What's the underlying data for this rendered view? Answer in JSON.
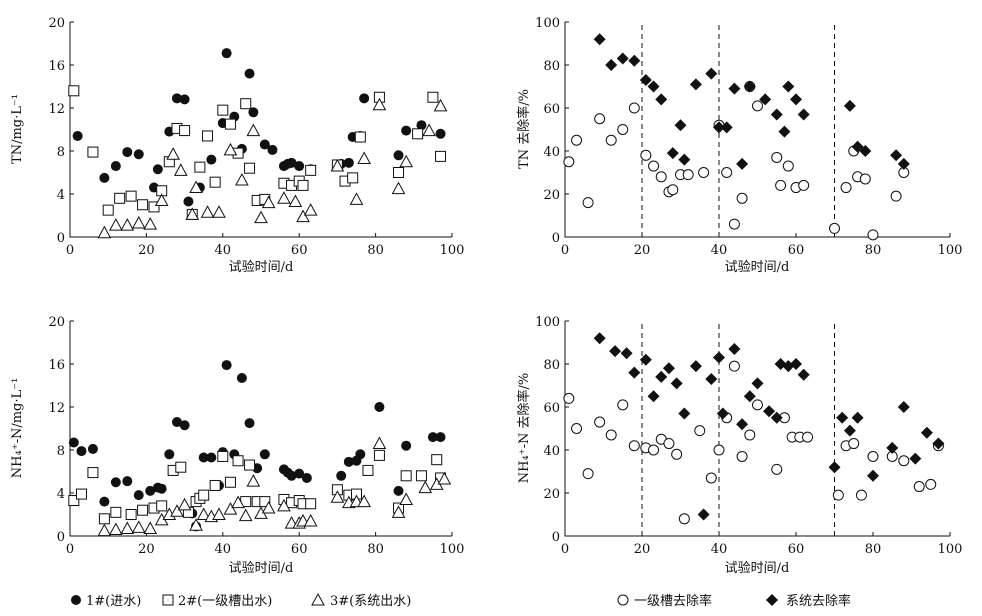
{
  "chart_data": [
    {
      "type": "scatter",
      "xlabel": "试验时间/d",
      "ylabel": "TN/mg·L⁻¹",
      "xlim": [
        0,
        100
      ],
      "ylim": [
        0,
        20
      ],
      "xticks": [
        0,
        20,
        40,
        60,
        80,
        100
      ],
      "yticks": [
        0,
        4,
        8,
        12,
        16,
        20
      ],
      "series": [
        {
          "name": "1#(进水)",
          "marker": "filled-circle",
          "color": "#111111",
          "x": [
            2,
            9,
            12,
            15,
            18,
            22,
            23,
            26,
            28,
            30,
            31,
            34,
            37,
            40,
            41,
            43,
            45,
            47,
            48,
            51,
            53,
            56,
            57,
            58,
            60,
            63,
            71,
            73,
            74,
            76,
            77,
            86,
            88,
            92,
            97
          ],
          "y": [
            9.4,
            5.5,
            6.6,
            7.9,
            7.7,
            4.6,
            6.3,
            9.8,
            12.9,
            12.8,
            3.3,
            4.6,
            7.2,
            10.6,
            17.1,
            11.2,
            8.2,
            15.2,
            11.6,
            8.6,
            8.1,
            6.6,
            6.8,
            6.9,
            6.6,
            6.3,
            6.8,
            6.9,
            9.3,
            9.4,
            12.9,
            7.6,
            9.9,
            10.4,
            9.6
          ]
        },
        {
          "name": "2#(一级槽出水)",
          "marker": "open-square",
          "color": "#111111",
          "x": [
            1,
            6,
            10,
            13,
            16,
            19,
            22,
            24,
            26,
            28,
            30,
            32,
            34,
            36,
            38,
            40,
            42,
            44,
            46,
            47,
            49,
            51,
            56,
            58,
            60,
            61,
            63,
            70,
            72,
            74,
            76,
            81,
            86,
            91,
            95,
            97
          ],
          "y": [
            13.6,
            7.9,
            2.5,
            3.6,
            3.8,
            3.0,
            2.8,
            4.3,
            7.0,
            10.1,
            9.9,
            2.1,
            6.5,
            9.4,
            5.1,
            11.8,
            10.5,
            7.8,
            12.4,
            6.4,
            3.4,
            3.5,
            5.0,
            4.8,
            5.2,
            4.8,
            6.2,
            6.7,
            5.2,
            5.5,
            9.3,
            13.0,
            6.0,
            9.6,
            13.0,
            7.5
          ]
        },
        {
          "name": "3#(系统出水)",
          "marker": "open-triangle",
          "color": "#111111",
          "x": [
            9,
            12,
            15,
            18,
            21,
            24,
            27,
            29,
            32,
            33,
            36,
            39,
            42,
            45,
            48,
            50,
            52,
            56,
            59,
            61,
            63,
            70,
            75,
            77,
            81,
            86,
            88,
            94,
            97
          ],
          "y": [
            0.4,
            1.1,
            1.1,
            1.3,
            1.2,
            3.4,
            7.7,
            6.2,
            2.1,
            4.6,
            2.3,
            2.3,
            8.1,
            5.3,
            9.9,
            1.8,
            3.2,
            3.6,
            3.3,
            1.9,
            2.5,
            6.6,
            3.5,
            7.3,
            12.3,
            4.5,
            7.0,
            9.9,
            12.2
          ]
        }
      ]
    },
    {
      "type": "scatter",
      "xlabel": "试验时间/d",
      "ylabel": "TN 去除率/%",
      "xlim": [
        0,
        100
      ],
      "ylim": [
        0,
        100
      ],
      "xticks": [
        0,
        20,
        40,
        60,
        80,
        100
      ],
      "yticks": [
        0,
        20,
        40,
        60,
        80,
        100
      ],
      "vlines": [
        20,
        40,
        70
      ],
      "series": [
        {
          "name": "一级槽去除率",
          "marker": "open-circle",
          "color": "#111111",
          "x": [
            1,
            3,
            6,
            9,
            12,
            15,
            18,
            21,
            23,
            25,
            27,
            28,
            30,
            32,
            36,
            40,
            42,
            44,
            46,
            48,
            50,
            55,
            56,
            58,
            60,
            62,
            70,
            73,
            75,
            76,
            78,
            80,
            86,
            88
          ],
          "y": [
            35,
            45,
            16,
            55,
            45,
            50,
            60,
            38,
            33,
            28,
            21,
            22,
            29,
            29,
            30,
            52,
            30,
            6,
            18,
            70,
            61,
            37,
            24,
            33,
            23,
            24,
            4,
            23,
            40,
            28,
            27,
            1,
            19,
            30
          ]
        },
        {
          "name": "系统去除率",
          "marker": "filled-diamond",
          "color": "#111111",
          "x": [
            9,
            12,
            15,
            18,
            21,
            23,
            25,
            28,
            30,
            31,
            34,
            38,
            40,
            42,
            44,
            46,
            48,
            52,
            55,
            57,
            58,
            60,
            62,
            74,
            76,
            78,
            86,
            88
          ],
          "y": [
            92,
            80,
            83,
            82,
            73,
            70,
            64,
            39,
            52,
            36,
            71,
            76,
            51,
            51,
            69,
            34,
            70,
            64,
            57,
            49,
            70,
            64,
            57,
            61,
            42,
            40,
            38,
            34
          ]
        }
      ]
    },
    {
      "type": "scatter",
      "xlabel": "试验时间/d",
      "ylabel": "NH₄⁺-N/mg·L⁻¹",
      "xlim": [
        0,
        100
      ],
      "ylim": [
        0,
        20
      ],
      "xticks": [
        0,
        20,
        40,
        60,
        80,
        100
      ],
      "yticks": [
        0,
        4,
        8,
        12,
        16,
        20
      ],
      "series": [
        {
          "name": "1#(进水)",
          "marker": "filled-circle",
          "color": "#111111",
          "x": [
            1,
            3,
            6,
            9,
            12,
            15,
            18,
            21,
            23,
            24,
            26,
            28,
            30,
            32,
            33,
            35,
            37,
            39,
            40,
            41,
            43,
            45,
            47,
            49,
            51,
            56,
            57,
            58,
            60,
            62,
            71,
            73,
            75,
            76,
            81,
            86,
            88,
            95,
            97
          ],
          "y": [
            8.7,
            7.9,
            8.1,
            3.2,
            5.0,
            5.1,
            3.8,
            4.2,
            4.5,
            4.4,
            7.6,
            10.6,
            10.3,
            2.1,
            0.9,
            7.3,
            7.3,
            4.7,
            7.8,
            15.9,
            7.6,
            14.7,
            10.5,
            6.3,
            7.6,
            6.2,
            5.9,
            5.6,
            5.8,
            5.4,
            5.6,
            6.9,
            7.0,
            7.6,
            12.0,
            4.2,
            8.4,
            9.2,
            9.2
          ]
        },
        {
          "name": "2#(一级槽出水)",
          "marker": "open-square",
          "color": "#111111",
          "x": [
            1,
            3,
            6,
            9,
            12,
            16,
            19,
            22,
            24,
            27,
            29,
            31,
            33,
            34,
            35,
            38,
            40,
            42,
            44,
            46,
            47,
            49,
            51,
            56,
            58,
            60,
            61,
            63,
            70,
            73,
            75,
            78,
            81,
            86,
            88,
            92,
            96,
            97
          ],
          "y": [
            3.3,
            3.9,
            5.9,
            1.6,
            2.2,
            2.0,
            2.4,
            2.6,
            2.8,
            6.1,
            6.4,
            2.2,
            3.2,
            3.5,
            3.8,
            4.7,
            7.4,
            5.0,
            7.0,
            3.2,
            6.6,
            3.2,
            3.2,
            3.4,
            3.1,
            3.3,
            3.0,
            3.0,
            4.3,
            3.8,
            3.9,
            6.1,
            7.5,
            2.6,
            5.6,
            5.6,
            7.1,
            5.4
          ]
        },
        {
          "name": "3#(系统出水)",
          "marker": "open-triangle",
          "color": "#111111",
          "x": [
            9,
            12,
            15,
            18,
            21,
            24,
            26,
            28,
            30,
            33,
            35,
            37,
            39,
            42,
            44,
            46,
            48,
            50,
            52,
            56,
            58,
            60,
            61,
            63,
            70,
            73,
            75,
            77,
            81,
            86,
            88,
            93,
            96,
            98
          ],
          "y": [
            0.5,
            0.6,
            0.7,
            0.8,
            0.7,
            1.5,
            2.0,
            2.3,
            2.9,
            1.0,
            2.0,
            1.8,
            2.0,
            2.5,
            3.1,
            1.9,
            5.1,
            2.1,
            2.6,
            2.8,
            1.2,
            1.2,
            1.4,
            1.4,
            3.6,
            3.1,
            3.2,
            3.2,
            8.6,
            2.2,
            3.4,
            4.5,
            4.8,
            5.3
          ]
        }
      ]
    },
    {
      "type": "scatter",
      "xlabel": "试验时间/d",
      "ylabel": "NH₄⁺-N 去除率/%",
      "xlim": [
        0,
        100
      ],
      "ylim": [
        0,
        100
      ],
      "xticks": [
        0,
        20,
        40,
        60,
        80,
        100
      ],
      "yticks": [
        0,
        20,
        40,
        60,
        80,
        100
      ],
      "vlines": [
        20,
        40,
        70
      ],
      "series": [
        {
          "name": "一级槽去除率",
          "marker": "open-circle",
          "color": "#111111",
          "x": [
            1,
            3,
            6,
            9,
            12,
            15,
            18,
            21,
            23,
            25,
            27,
            29,
            31,
            35,
            38,
            40,
            42,
            44,
            46,
            48,
            50,
            55,
            57,
            59,
            61,
            63,
            71,
            73,
            75,
            77,
            80,
            85,
            88,
            92,
            95,
            97
          ],
          "y": [
            64,
            50,
            29,
            53,
            47,
            61,
            42,
            41,
            40,
            45,
            43,
            38,
            8,
            49,
            27,
            40,
            55,
            79,
            37,
            47,
            61,
            31,
            55,
            46,
            46,
            46,
            19,
            42,
            43,
            19,
            37,
            37,
            35,
            23,
            24,
            42
          ]
        },
        {
          "name": "系统去除率",
          "marker": "filled-diamond",
          "color": "#111111",
          "x": [
            9,
            13,
            16,
            18,
            21,
            23,
            25,
            27,
            29,
            31,
            34,
            36,
            38,
            40,
            41,
            44,
            46,
            48,
            50,
            53,
            55,
            56,
            58,
            60,
            62,
            70,
            72,
            74,
            76,
            80,
            85,
            88,
            91,
            94,
            97
          ],
          "y": [
            92,
            86,
            85,
            76,
            82,
            65,
            74,
            78,
            71,
            57,
            79,
            10,
            73,
            83,
            57,
            87,
            52,
            65,
            71,
            58,
            55,
            80,
            79,
            80,
            75,
            32,
            55,
            49,
            55,
            28,
            41,
            60,
            36,
            48,
            43
          ]
        }
      ]
    }
  ],
  "legend_left": {
    "items": [
      {
        "label": "1#(进水)",
        "marker": "filled-circle"
      },
      {
        "label": "2#(一级槽出水)",
        "marker": "open-square"
      },
      {
        "label": "3#(系统出水)",
        "marker": "open-triangle"
      }
    ]
  },
  "legend_right": {
    "items": [
      {
        "label": "一级槽去除率",
        "marker": "open-circle"
      },
      {
        "label": "系统去除率",
        "marker": "filled-diamond"
      }
    ]
  }
}
